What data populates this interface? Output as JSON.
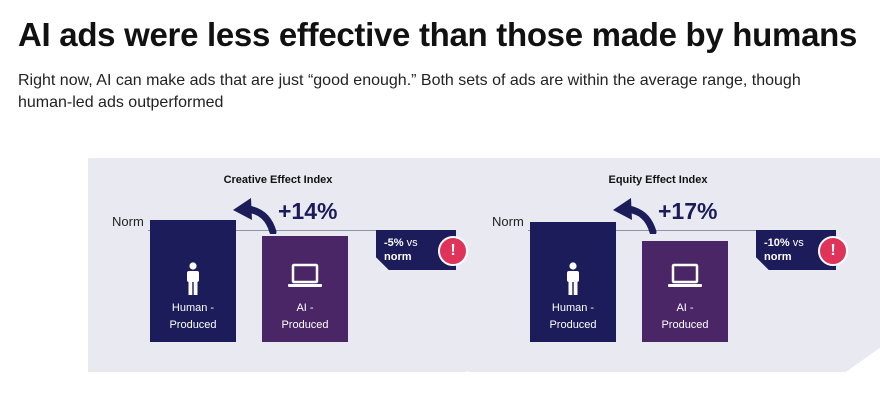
{
  "header": {
    "title": "AI ads were less effective than those made by humans",
    "subtitle": "Right now, AI can make ads that are just “good enough.”  Both sets of ads are within the average range, though human-led ads outperformed"
  },
  "colors": {
    "human_bar": "#1b1c59",
    "ai_bar": "#4a2667",
    "panel_background": "#e9eaf1",
    "alert_badge": "#e0335a"
  },
  "panels": [
    {
      "title": "Creative Effect Index",
      "norm_label": "Norm",
      "uplift": "+14%",
      "callout_value": "-5%",
      "callout_vs": "vs",
      "callout_norm": "norm",
      "alert_symbol": "!",
      "bars": [
        {
          "line1": "Human -",
          "line2": "Produced",
          "icon": "person-icon"
        },
        {
          "line1": "AI -",
          "line2": "Produced",
          "icon": "laptop-icon"
        }
      ]
    },
    {
      "title": "Equity Effect Index",
      "norm_label": "Norm",
      "uplift": "+17%",
      "callout_value": "-10%",
      "callout_vs": "vs",
      "callout_norm": "norm",
      "alert_symbol": "!",
      "bars": [
        {
          "line1": "Human -",
          "line2": "Produced",
          "icon": "person-icon"
        },
        {
          "line1": "AI -",
          "line2": "Produced",
          "icon": "laptop-icon"
        }
      ]
    }
  ],
  "chart_data": [
    {
      "type": "bar",
      "title": "Creative Effect Index",
      "categories": [
        "Human - Produced",
        "AI - Produced"
      ],
      "values": [
        109,
        95
      ],
      "reference_line": {
        "label": "Norm",
        "value": 100
      },
      "annotations": [
        "+14%",
        "-5% vs norm"
      ]
    },
    {
      "type": "bar",
      "title": "Equity Effect Index",
      "categories": [
        "Human - Produced",
        "AI - Produced"
      ],
      "values": [
        107,
        90
      ],
      "reference_line": {
        "label": "Norm",
        "value": 100
      },
      "annotations": [
        "+17%",
        "-10% vs norm"
      ]
    }
  ]
}
